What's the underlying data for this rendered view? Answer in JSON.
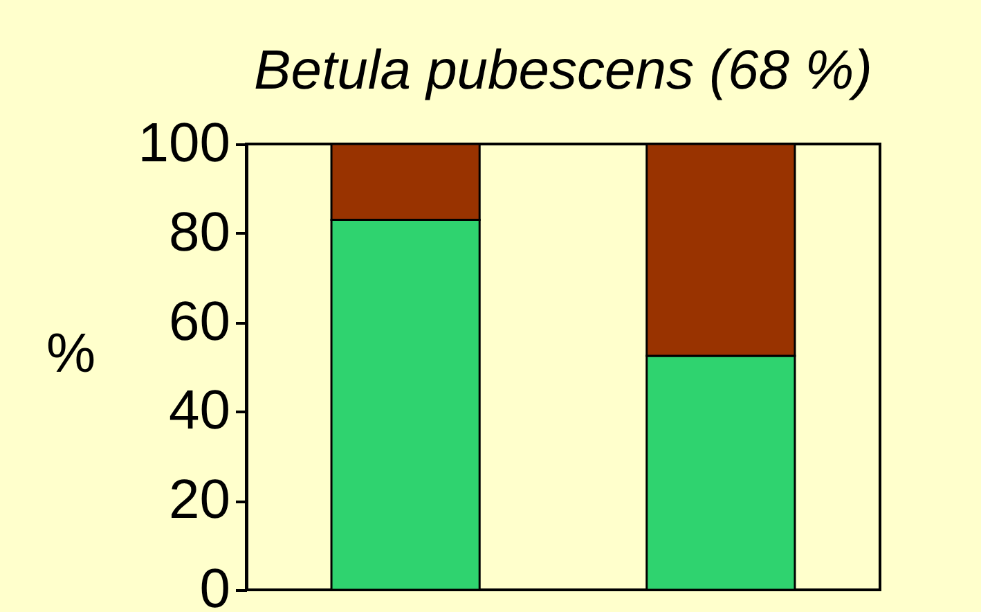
{
  "chart_data": {
    "type": "bar",
    "title": "Betula pubescens  (68 %)",
    "ylabel": "%",
    "categories": [
      null,
      null
    ],
    "stacked": true,
    "series": [
      {
        "color": "#2fd36f",
        "values": [
          83,
          52.5
        ]
      },
      {
        "color": "#993300",
        "values": [
          17,
          47.5
        ]
      }
    ],
    "ylim": [
      0,
      100
    ],
    "yticks": [
      0,
      20,
      40,
      60,
      80,
      100
    ],
    "grid": false,
    "legend": false,
    "tick_labels": "y"
  }
}
